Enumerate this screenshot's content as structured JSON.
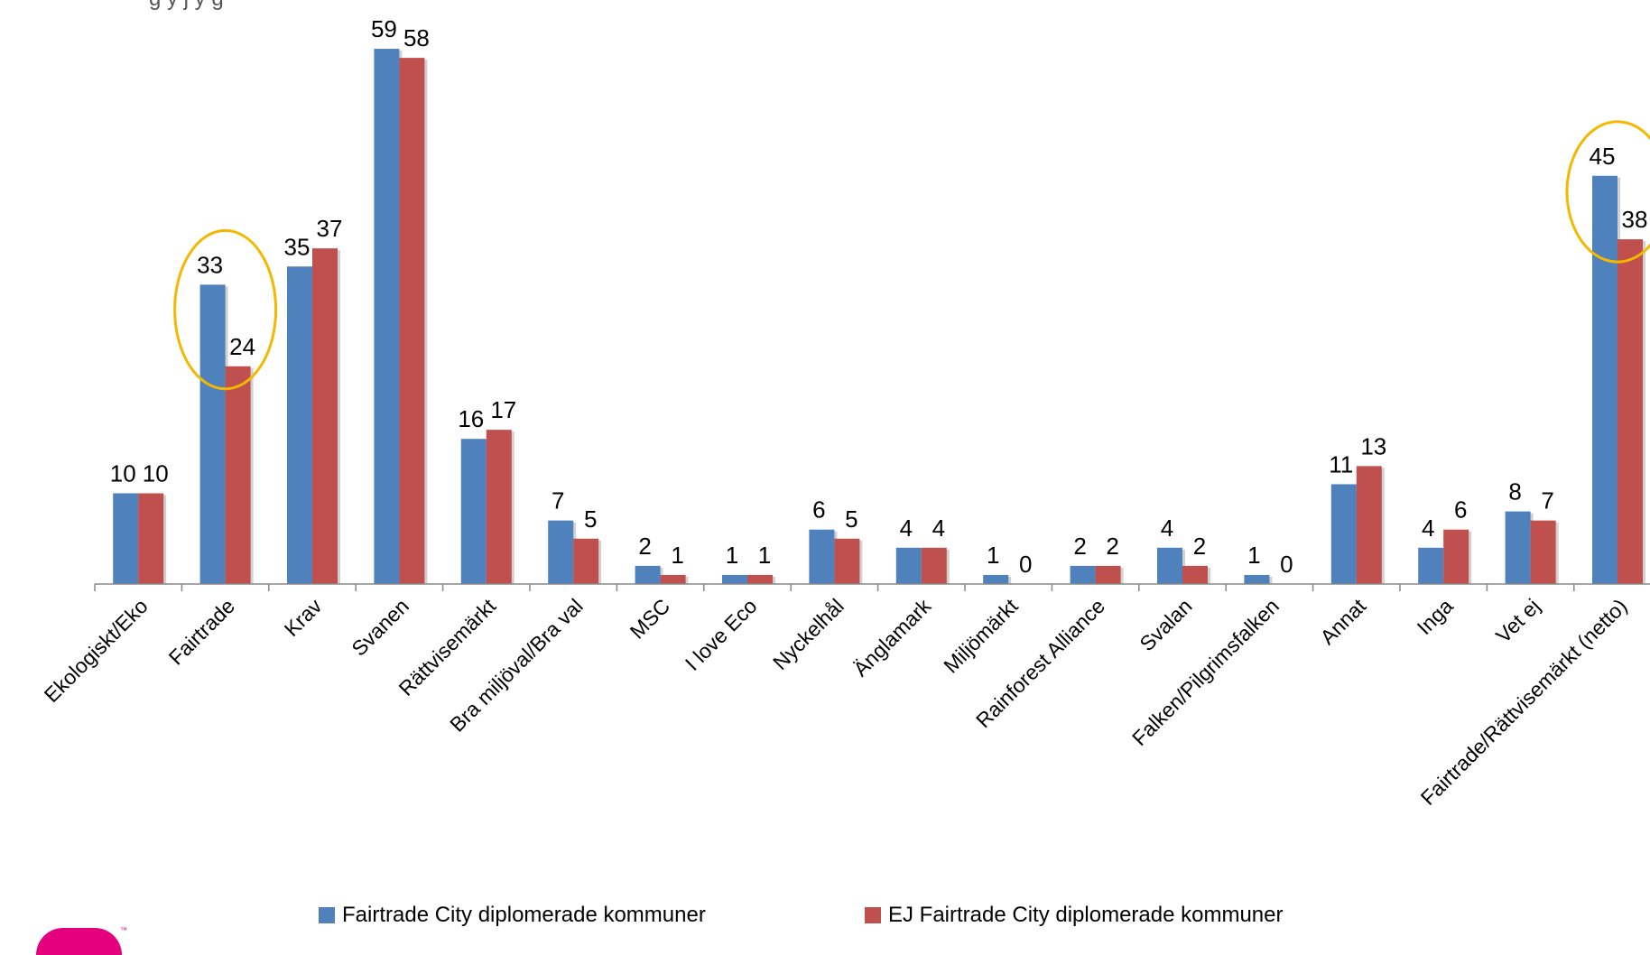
{
  "chart_data": {
    "type": "bar",
    "title": "",
    "categories": [
      "Ekologiskt/Eko",
      "Fairtrade",
      "Krav",
      "Svanen",
      "Rättvisemärkt",
      "Bra miljöval/Bra val",
      "MSC",
      "I love Eco",
      "Nyckelhål",
      "Änglamark",
      "Miljömärkt",
      "Rainforest Alliance",
      "Svalan",
      "Falken/Pilgrimsfalken",
      "Annat",
      "Inga",
      "Vet ej",
      "Fairtrade/Rättvisemärkt (netto)"
    ],
    "series": [
      {
        "name": "Fairtrade City diplomerade kommuner",
        "color": "#4f81bd",
        "values": [
          10,
          33,
          35,
          59,
          16,
          7,
          2,
          1,
          6,
          4,
          1,
          2,
          4,
          1,
          11,
          4,
          8,
          45
        ]
      },
      {
        "name": "EJ Fairtrade City diplomerade kommuner",
        "color": "#c0504d",
        "values": [
          10,
          24,
          37,
          58,
          17,
          5,
          1,
          1,
          5,
          4,
          0,
          2,
          2,
          0,
          13,
          6,
          7,
          38
        ]
      }
    ],
    "ylim": [
      0,
      60
    ],
    "grid": false,
    "legend": "bottom",
    "highlight_categories": [
      "Fairtrade",
      "Fairtrade/Rättvisemärkt (netto)"
    ],
    "highlight_color": "#f5b800"
  },
  "top_text_fragment": "g        y      j         y   g"
}
